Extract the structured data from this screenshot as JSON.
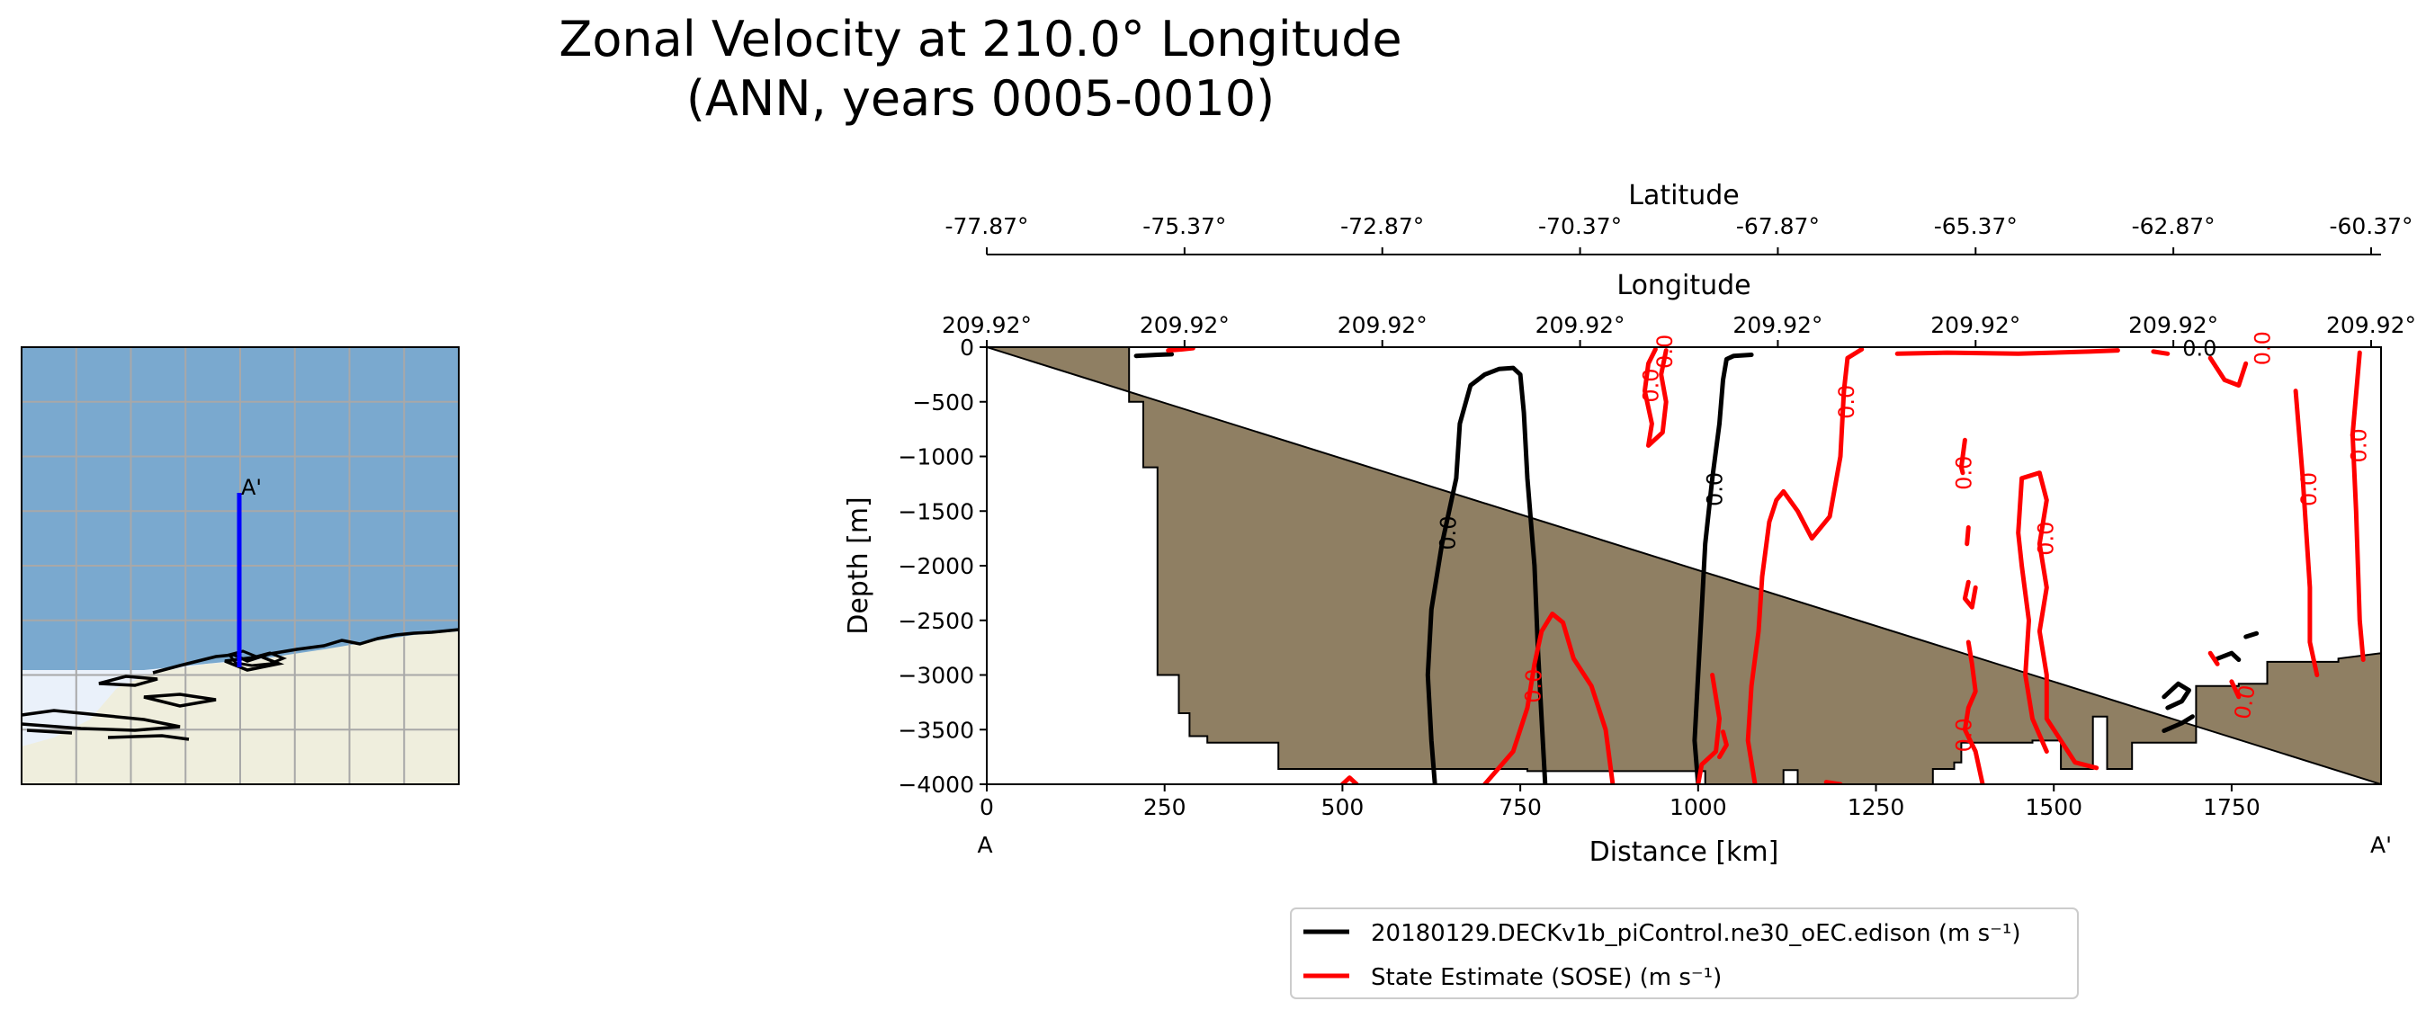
{
  "title_line1": "Zonal Velocity at 210.0° Longitude",
  "title_line2": "(ANN, years 0005-0010)",
  "colors": {
    "model": "#000000",
    "obs": "#ff0000",
    "bathymetry": "#8f7f63",
    "ocean": "#7aa9cf",
    "land": "#efeedd",
    "ice_shelf": "#eaf1fa",
    "transect": "#0000ff",
    "grid": "#a8a8a8"
  },
  "map": {
    "end_label": "A'"
  },
  "chart_data": {
    "type": "contour",
    "x_axis": {
      "label": "Distance [km]",
      "ticks": [
        0,
        250,
        500,
        750,
        1000,
        1250,
        1500,
        1750
      ],
      "tick_labels": [
        "0",
        "250",
        "500",
        "750",
        "1000",
        "1250",
        "1500",
        "1750"
      ],
      "range": [
        0,
        1960
      ],
      "start_label": "A",
      "end_label": "A'"
    },
    "y_axis": {
      "label": "Depth [m]",
      "ticks": [
        0,
        -500,
        -1000,
        -1500,
        -2000,
        -2500,
        -3000,
        -3500,
        -4000
      ],
      "tick_labels": [
        "0",
        "−500",
        "−1000",
        "−1500",
        "−2000",
        "−2500",
        "−3000",
        "−3500",
        "−4000"
      ],
      "range": [
        -4000,
        0
      ]
    },
    "top_axis_latitude": {
      "label": "Latitude",
      "tick_labels": [
        "-77.87°",
        "-75.37°",
        "-72.87°",
        "-70.37°",
        "-67.87°",
        "-65.37°",
        "-62.87°",
        "-60.37°"
      ]
    },
    "top_axis_longitude": {
      "label": "Longitude",
      "tick_labels": [
        "209.92°",
        "209.92°",
        "209.92°",
        "209.92°",
        "209.92°",
        "209.92°",
        "209.92°",
        "209.92°"
      ]
    },
    "contour_level": "0.0",
    "bathymetry_profile": [
      [
        0,
        0
      ],
      [
        200,
        0
      ],
      [
        200,
        -500
      ],
      [
        220,
        -500
      ],
      [
        220,
        -1100
      ],
      [
        240,
        -1100
      ],
      [
        240,
        -3000
      ],
      [
        270,
        -3000
      ],
      [
        270,
        -3350
      ],
      [
        285,
        -3350
      ],
      [
        285,
        -3560
      ],
      [
        310,
        -3560
      ],
      [
        310,
        -3620
      ],
      [
        410,
        -3620
      ],
      [
        410,
        -3860
      ],
      [
        760,
        -3860
      ],
      [
        760,
        -3880
      ],
      [
        1010,
        -3880
      ],
      [
        1010,
        -4000
      ],
      [
        1120,
        -4000
      ],
      [
        1120,
        -3870
      ],
      [
        1140,
        -3870
      ],
      [
        1140,
        -4000
      ],
      [
        1330,
        -4000
      ],
      [
        1330,
        -3860
      ],
      [
        1360,
        -3860
      ],
      [
        1360,
        -3800
      ],
      [
        1370,
        -3800
      ],
      [
        1370,
        -3620
      ],
      [
        1470,
        -3620
      ],
      [
        1470,
        -3600
      ],
      [
        1510,
        -3600
      ],
      [
        1510,
        -3860
      ],
      [
        1555,
        -3860
      ],
      [
        1555,
        -3380
      ],
      [
        1575,
        -3380
      ],
      [
        1575,
        -3860
      ],
      [
        1610,
        -3860
      ],
      [
        1610,
        -3620
      ],
      [
        1650,
        -3620
      ],
      [
        1650,
        -3620
      ],
      [
        1700,
        -3620
      ],
      [
        1700,
        -3100
      ],
      [
        1760,
        -3100
      ],
      [
        1760,
        -3080
      ],
      [
        1800,
        -3080
      ],
      [
        1800,
        -2880
      ],
      [
        1900,
        -2880
      ],
      [
        1900,
        -2850
      ],
      [
        1960,
        -2800
      ],
      [
        1960,
        -4000
      ]
    ],
    "series": [
      {
        "name": "20180129.DECKv1b_piControl.ne30_oEC.edison (m s⁻¹)",
        "lines": [
          [
            [
              210,
              -80
            ],
            [
              240,
              -70
            ],
            [
              260,
              -65
            ]
          ],
          [
            [
              630,
              -4000
            ],
            [
              625,
              -3600
            ],
            [
              620,
              -3000
            ],
            [
              625,
              -2400
            ],
            [
              640,
              -1800
            ],
            [
              660,
              -1200
            ],
            [
              665,
              -700
            ],
            [
              680,
              -350
            ],
            [
              700,
              -250
            ],
            [
              720,
              -200
            ],
            [
              740,
              -190
            ],
            [
              750,
              -250
            ],
            [
              755,
              -600
            ],
            [
              760,
              -1200
            ],
            [
              770,
              -2000
            ],
            [
              775,
              -2800
            ],
            [
              780,
              -3400
            ],
            [
              785,
              -4000
            ]
          ],
          [
            [
              1000,
              -4000
            ],
            [
              995,
              -3600
            ],
            [
              1000,
              -3000
            ],
            [
              1005,
              -2400
            ],
            [
              1010,
              -1800
            ],
            [
              1020,
              -1200
            ],
            [
              1030,
              -700
            ],
            [
              1035,
              -300
            ],
            [
              1040,
              -110
            ],
            [
              1050,
              -80
            ],
            [
              1075,
              -70
            ]
          ],
          [
            [
              1660,
              -3300
            ],
            [
              1680,
              -3240
            ],
            [
              1690,
              -3140
            ],
            [
              1675,
              -3080
            ],
            [
              1655,
              -3200
            ]
          ],
          [
            [
              1730,
              -2850
            ],
            [
              1750,
              -2800
            ],
            [
              1760,
              -2860
            ]
          ],
          [
            [
              1770,
              -2650
            ],
            [
              1785,
              -2620
            ]
          ],
          [
            [
              1655,
              -3510
            ],
            [
              1680,
              -3440
            ],
            [
              1695,
              -3380
            ]
          ]
        ]
      },
      {
        "name": "State Estimate (SOSE) (m s⁻¹)",
        "lines": [
          [
            [
              255,
              -30
            ],
            [
              275,
              -20
            ],
            [
              290,
              -10
            ]
          ],
          [
            [
              700,
              -4000
            ],
            [
              740,
              -3700
            ],
            [
              760,
              -3300
            ],
            [
              770,
              -2900
            ],
            [
              780,
              -2600
            ],
            [
              795,
              -2440
            ],
            [
              810,
              -2520
            ],
            [
              825,
              -2850
            ],
            [
              850,
              -3100
            ],
            [
              870,
              -3500
            ],
            [
              880,
              -4000
            ]
          ],
          [
            [
              500,
              -4000
            ],
            [
              510,
              -3940
            ],
            [
              520,
              -4000
            ]
          ],
          [
            [
              940,
              -20
            ],
            [
              930,
              -150
            ],
            [
              925,
              -400
            ],
            [
              935,
              -700
            ],
            [
              930,
              -900
            ],
            [
              950,
              -780
            ],
            [
              955,
              -500
            ],
            [
              948,
              -250
            ],
            [
              955,
              -30
            ]
          ],
          [
            [
              1020,
              -3000
            ],
            [
              1030,
              -3400
            ],
            [
              1025,
              -3700
            ],
            [
              1005,
              -3820
            ],
            [
              1000,
              -4000
            ]
          ],
          [
            [
              1030,
              -3750
            ],
            [
              1040,
              -3640
            ],
            [
              1035,
              -3520
            ]
          ],
          [
            [
              1080,
              -4000
            ],
            [
              1070,
              -3600
            ],
            [
              1075,
              -3100
            ],
            [
              1085,
              -2600
            ],
            [
              1090,
              -2100
            ],
            [
              1100,
              -1600
            ],
            [
              1110,
              -1400
            ],
            [
              1120,
              -1320
            ],
            [
              1140,
              -1500
            ],
            [
              1160,
              -1750
            ],
            [
              1185,
              -1550
            ],
            [
              1200,
              -1000
            ],
            [
              1205,
              -400
            ],
            [
              1210,
              -100
            ],
            [
              1230,
              -20
            ]
          ],
          [
            [
              1180,
              -3980
            ],
            [
              1200,
              -4000
            ]
          ],
          [
            [
              1375,
              -850
            ],
            [
              1370,
              -1100
            ],
            [
              1372,
              -1150
            ]
          ],
          [
            [
              1380,
              -1650
            ],
            [
              1378,
              -1800
            ]
          ],
          [
            [
              1380,
              -2150
            ],
            [
              1375,
              -2300
            ],
            [
              1385,
              -2380
            ],
            [
              1390,
              -2200
            ]
          ],
          [
            [
              1380,
              -2700
            ],
            [
              1385,
              -2900
            ],
            [
              1390,
              -3150
            ],
            [
              1380,
              -3300
            ],
            [
              1375,
              -3500
            ],
            [
              1390,
              -3700
            ],
            [
              1400,
              -4000
            ]
          ],
          [
            [
              1490,
              -3700
            ],
            [
              1470,
              -3400
            ],
            [
              1460,
              -3000
            ],
            [
              1465,
              -2500
            ],
            [
              1455,
              -2000
            ],
            [
              1450,
              -1700
            ],
            [
              1455,
              -1200
            ],
            [
              1480,
              -1150
            ],
            [
              1490,
              -1400
            ],
            [
              1480,
              -1800
            ],
            [
              1490,
              -2200
            ],
            [
              1480,
              -2600
            ],
            [
              1490,
              -3000
            ],
            [
              1490,
              -3400
            ],
            [
              1530,
              -3800
            ],
            [
              1560,
              -3850
            ]
          ],
          [
            [
              1280,
              -60
            ],
            [
              1350,
              -50
            ],
            [
              1450,
              -60
            ],
            [
              1550,
              -40
            ],
            [
              1590,
              -30
            ]
          ],
          [
            [
              1640,
              -40
            ],
            [
              1660,
              -60
            ]
          ],
          [
            [
              1720,
              -100
            ],
            [
              1740,
              -300
            ],
            [
              1760,
              -350
            ],
            [
              1770,
              -150
            ]
          ],
          [
            [
              1840,
              -400
            ],
            [
              1850,
              -1200
            ],
            [
              1860,
              -2200
            ],
            [
              1860,
              -2700
            ],
            [
              1870,
              -3000
            ]
          ],
          [
            [
              1930,
              -50
            ],
            [
              1920,
              -800
            ],
            [
              1925,
              -1500
            ],
            [
              1930,
              -2500
            ],
            [
              1935,
              -2860
            ]
          ],
          [
            [
              1720,
              -2800
            ],
            [
              1730,
              -2900
            ]
          ],
          [
            [
              1750,
              -3060
            ],
            [
              1760,
              -3200
            ]
          ]
        ]
      }
    ],
    "legend_placement": "bottom-center"
  }
}
